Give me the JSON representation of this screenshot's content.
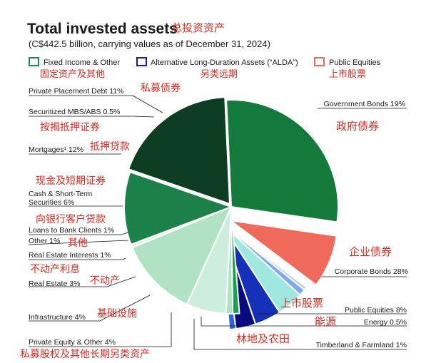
{
  "chart_data": {
    "type": "pie",
    "title": "Total invested assets",
    "title_cn": "总投资资产",
    "subtitle": "(C$442.5 billion, carrying values as of December 31, 2024)",
    "legend_placement": "top",
    "legend": [
      {
        "name": "Fixed Income & Other",
        "cn": "固定资产及其他",
        "color": "#1e8c4e"
      },
      {
        "name": "Alternative Long-Duration Assets (“ALDA”)",
        "cn": "另类远期",
        "color": "#1c1ca0"
      },
      {
        "name": "Public Equities",
        "cn": "上市股票",
        "color": "#ef6a5b"
      }
    ],
    "slices": [
      {
        "label": "Government Bonds 19%",
        "cn": "政府债券",
        "value": 19,
        "color": "#0d3d22"
      },
      {
        "label": "Corporate Bonds 28%",
        "cn": "企业债券",
        "value": 28,
        "color": "#147a3c"
      },
      {
        "label": "Public Equities 8%",
        "cn": "上市股票",
        "value": 8,
        "color": "#ef6a5b"
      },
      {
        "label": "Energy 0.5%",
        "cn": "能源",
        "value": 0.5,
        "color": "#b6ccf0"
      },
      {
        "label": "Timberland & Farmland 1%",
        "cn": "林地及农田",
        "value": 1,
        "color": "#7fa8ee"
      },
      {
        "label": "Private Equity & Other 4%",
        "cn": "私募股权及其他长期另类资产",
        "value": 4,
        "color": "#9fe8e0"
      },
      {
        "label": "Infrastructure 4%",
        "cn": "基础设施",
        "value": 4,
        "color": "#1530b8"
      },
      {
        "label": "Real Estate 3%",
        "cn": "不动产",
        "value": 3,
        "color": "#0a0a80"
      },
      {
        "label": "Real Estate Interests 1%",
        "cn": "不动产利息",
        "value": 1,
        "color": "#2f66df"
      },
      {
        "label": "Other 1%",
        "cn": "其他",
        "value": 1,
        "color": "#1e9e52"
      },
      {
        "label": "Loans to Bank Clients 1%",
        "cn": "向银行客户贷款",
        "value": 1,
        "color": "#a9e3c0"
      },
      {
        "label": "Cash & Short-Term Securities 6%",
        "cn": "现金及短期证券",
        "value": 6,
        "color": "#cdeedd"
      },
      {
        "label": "Mortgages¹ 12%",
        "cn": "抵押贷款",
        "value": 12,
        "color": "#b2e2c4"
      },
      {
        "label": "Securitized MBS/ABS 0.5%",
        "cn": "按揭抵押证券",
        "value": 0.5,
        "color": "#dff3e7"
      },
      {
        "label": "Private Placement Debt 11%",
        "cn": "私募债券",
        "value": 11,
        "color": "#1b8148"
      }
    ]
  }
}
